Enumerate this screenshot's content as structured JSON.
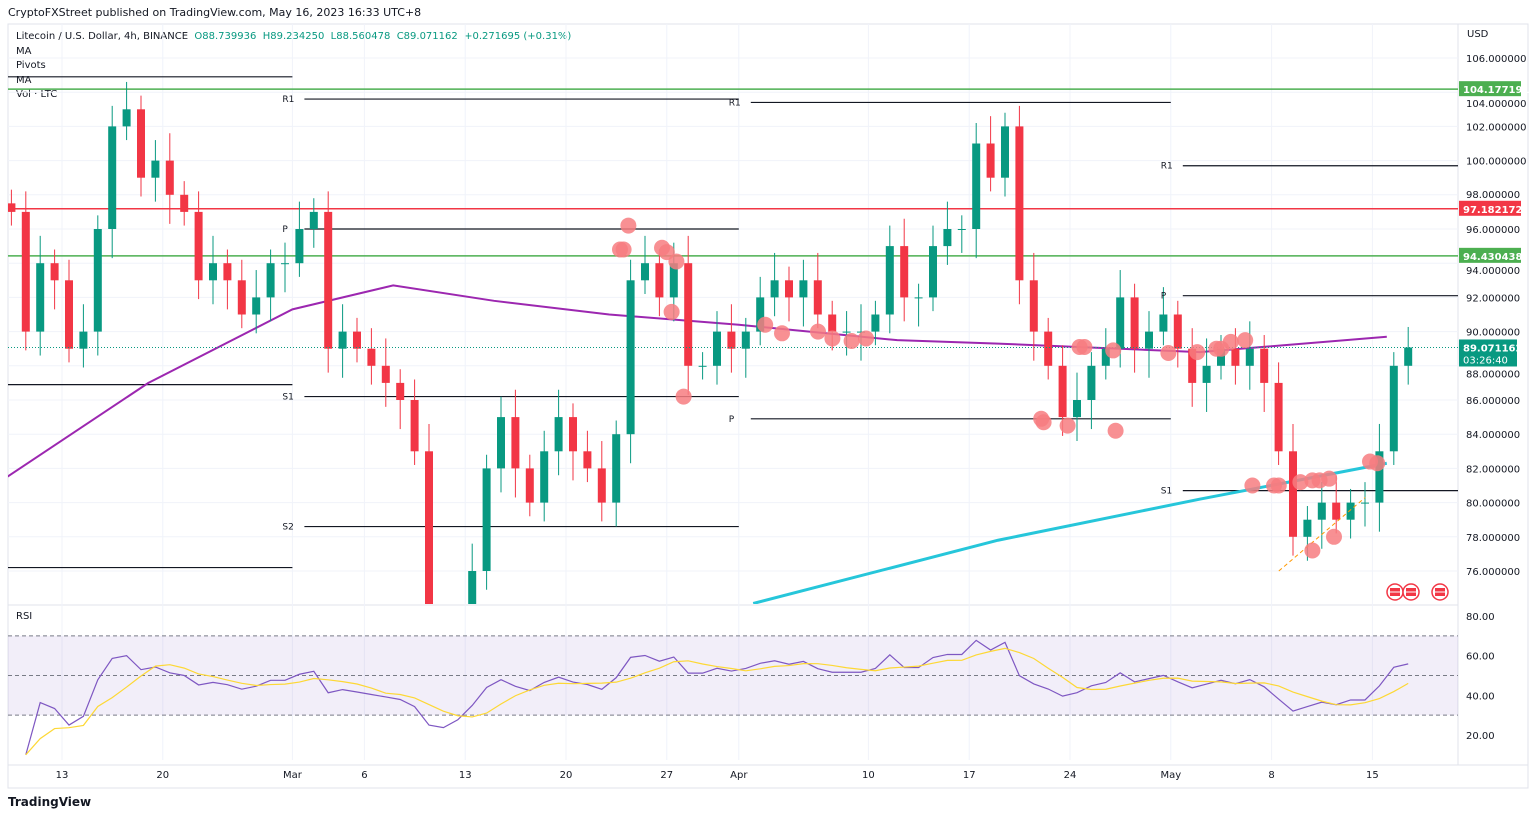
{
  "header": {
    "published": "CryptoFXStreet published on TradingView.com, May 16, 2023 16:33 UTC+8",
    "symbol": "Litecoin / U.S. Dollar, 4h, BINANCE",
    "open": "O88.739936",
    "high": "H89.234250",
    "low": "L88.560478",
    "close": "C89.071162",
    "change": "+0.271695 (+0.31%)",
    "indicators": [
      "MA",
      "Pivots",
      "MA",
      "Vol · LTC"
    ]
  },
  "footer": {
    "brand": "TradingView"
  },
  "colors": {
    "up": "#089981",
    "down": "#f23645",
    "ma_slow": "#9c27b0",
    "ma_fast": "#26c6da",
    "rsi": "#7e57c2",
    "rsi_ma": "#fdd835",
    "green_level": "#4caf50",
    "red_level": "#f23645",
    "marker": "#f77c80"
  },
  "chart_data": [
    {
      "type": "candlestick",
      "currency_label": "USD",
      "start_date": "2023-02-09",
      "closes": [
        97,
        90,
        94,
        93,
        89,
        90,
        96,
        102,
        103,
        99,
        100,
        98,
        97,
        93,
        94,
        93,
        91,
        92,
        94,
        94,
        96,
        97,
        89,
        90,
        89,
        88,
        87,
        86,
        83,
        72,
        70,
        72,
        76,
        82,
        85,
        82,
        80,
        83,
        85,
        83,
        82,
        80,
        84,
        93,
        94,
        92,
        94,
        88,
        88,
        90,
        89,
        90,
        92,
        93,
        92,
        93,
        91,
        90,
        90,
        90,
        91,
        95,
        92,
        92,
        95,
        96,
        96,
        101,
        99,
        102,
        93,
        90,
        88,
        85,
        86,
        88,
        89,
        92,
        89,
        90,
        91,
        89,
        87,
        88,
        89,
        88,
        89,
        87,
        83,
        78,
        79,
        80,
        79,
        80,
        80,
        83,
        88,
        89.071162
      ],
      "yticks": [
        76,
        78,
        80,
        82,
        84,
        86,
        88,
        90,
        92,
        94,
        96,
        98,
        100,
        102,
        104,
        106
      ],
      "ylim": [
        74.5,
        108
      ],
      "xticks": [
        {
          "date": "2023-02-13",
          "label": "13"
        },
        {
          "date": "2023-02-20",
          "label": "20"
        },
        {
          "date": "2023-03-01",
          "label": "Mar"
        },
        {
          "date": "2023-03-06",
          "label": "6"
        },
        {
          "date": "2023-03-13",
          "label": "13"
        },
        {
          "date": "2023-03-20",
          "label": "20"
        },
        {
          "date": "2023-03-27",
          "label": "27"
        },
        {
          "date": "2023-04-01",
          "label": "Apr"
        },
        {
          "date": "2023-04-10",
          "label": "10"
        },
        {
          "date": "2023-04-17",
          "label": "17"
        },
        {
          "date": "2023-04-24",
          "label": "24"
        },
        {
          "date": "2023-05-01",
          "label": "May"
        },
        {
          "date": "2023-05-08",
          "label": "8"
        },
        {
          "date": "2023-05-15",
          "label": "15"
        }
      ],
      "last_price_label": "89.071162",
      "countdown": "03:26:40",
      "horizontal_levels": [
        {
          "price": 104.177191,
          "label": "104.177191",
          "color": "#4caf50"
        },
        {
          "price": 97.182172,
          "label": "97.182172",
          "color": "#f23645"
        },
        {
          "price": 94.430438,
          "label": "94.430438",
          "color": "#4caf50"
        }
      ],
      "pivots": [
        {
          "from": "2023-02-09",
          "to": "2023-03-01",
          "levels": [
            {
              "label": "",
              "price": 104.9
            },
            {
              "label": "",
              "price": 86.9
            },
            {
              "label": "",
              "price": 76.2
            }
          ]
        },
        {
          "from": "2023-03-01",
          "to": "2023-04-01",
          "levels": [
            {
              "label": "R1",
              "price": 103.6
            },
            {
              "label": "P",
              "price": 96.0
            },
            {
              "label": "S1",
              "price": 86.2
            },
            {
              "label": "S2",
              "price": 78.6
            }
          ]
        },
        {
          "from": "2023-04-01",
          "to": "2023-05-01",
          "levels": [
            {
              "label": "R1",
              "price": 103.4
            },
            {
              "label": "P",
              "price": 84.9
            }
          ]
        },
        {
          "from": "2023-05-01",
          "to": "2023-05-21",
          "levels": [
            {
              "label": "R1",
              "price": 99.7
            },
            {
              "label": "P",
              "price": 92.1
            },
            {
              "label": "S1",
              "price": 80.7
            }
          ]
        }
      ],
      "ma_slow": [
        [
          "2023-02-09",
          81.4
        ],
        [
          "2023-02-19",
          87
        ],
        [
          "2023-03-01",
          91.3
        ],
        [
          "2023-03-08",
          92.7
        ],
        [
          "2023-03-15",
          91.8
        ],
        [
          "2023-03-23",
          91
        ],
        [
          "2023-04-01",
          90.4
        ],
        [
          "2023-04-12",
          89.5
        ],
        [
          "2023-04-19",
          89.3
        ],
        [
          "2023-05-03",
          88.8
        ],
        [
          "2023-05-16",
          89.7
        ]
      ],
      "ma_fast": [
        [
          "2023-04-02",
          74.1
        ],
        [
          "2023-04-19",
          77.8
        ],
        [
          "2023-05-03",
          80.2
        ],
        [
          "2023-05-16",
          82.3
        ]
      ],
      "trendline": [
        [
          "2023-05-08 12:00",
          76.0
        ],
        [
          "2023-05-14 12:00",
          80.3
        ]
      ],
      "markers": [
        [
          "2023-03-23 18:00",
          94.8
        ],
        [
          "2023-03-24 00:00",
          94.8
        ],
        [
          "2023-03-24 08:00",
          96.2
        ],
        [
          "2023-03-26 16:00",
          94.9
        ],
        [
          "2023-03-27 00:00",
          94.65
        ],
        [
          "2023-03-27 16:00",
          94.1
        ],
        [
          "2023-03-27 08:00",
          91.15
        ],
        [
          "2023-03-28 04:00",
          86.2
        ],
        [
          "2023-04-02 20:00",
          90.4
        ],
        [
          "2023-04-04 00:00",
          89.9
        ],
        [
          "2023-04-06 12:00",
          90.0
        ],
        [
          "2023-04-07 12:00",
          89.6
        ],
        [
          "2023-04-08 20:00",
          89.45
        ],
        [
          "2023-04-09 20:00",
          89.6
        ],
        [
          "2023-04-22 00:00",
          84.9
        ],
        [
          "2023-04-22 04:00",
          84.7
        ],
        [
          "2023-04-23 20:00",
          84.5
        ],
        [
          "2023-04-24 16:00",
          89.1
        ],
        [
          "2023-04-25 00:00",
          89.1
        ],
        [
          "2023-04-27 00:00",
          88.9
        ],
        [
          "2023-04-27 04:00",
          84.2
        ],
        [
          "2023-04-30 20:00",
          88.75
        ],
        [
          "2023-05-02 20:00",
          88.8
        ],
        [
          "2023-05-04 04:00",
          89.0
        ],
        [
          "2023-05-04 12:00",
          89.0
        ],
        [
          "2023-05-05 04:00",
          89.4
        ],
        [
          "2023-05-06 04:00",
          89.5
        ],
        [
          "2023-05-06 16:00",
          81.0
        ],
        [
          "2023-05-08 04:00",
          81.0
        ],
        [
          "2023-05-08 12:00",
          81.0
        ],
        [
          "2023-05-10 00:00",
          81.2
        ],
        [
          "2023-05-10 20:00",
          81.3
        ],
        [
          "2023-05-11 08:00",
          81.3
        ],
        [
          "2023-05-12 00:00",
          81.4
        ],
        [
          "2023-05-10 20:00",
          77.2
        ],
        [
          "2023-05-12 08:00",
          78.0
        ],
        [
          "2023-05-14 20:00",
          82.4
        ],
        [
          "2023-05-15 08:00",
          82.3
        ]
      ],
      "event_icons": [
        "us-flag-icon",
        "us-flag-icon",
        "us-flag-icon"
      ]
    },
    {
      "type": "line",
      "title": "RSI",
      "yticks": [
        "80.00",
        "60.00",
        "40.00",
        "20.00"
      ],
      "bands": [
        30,
        50,
        70
      ],
      "period": 14
    }
  ]
}
